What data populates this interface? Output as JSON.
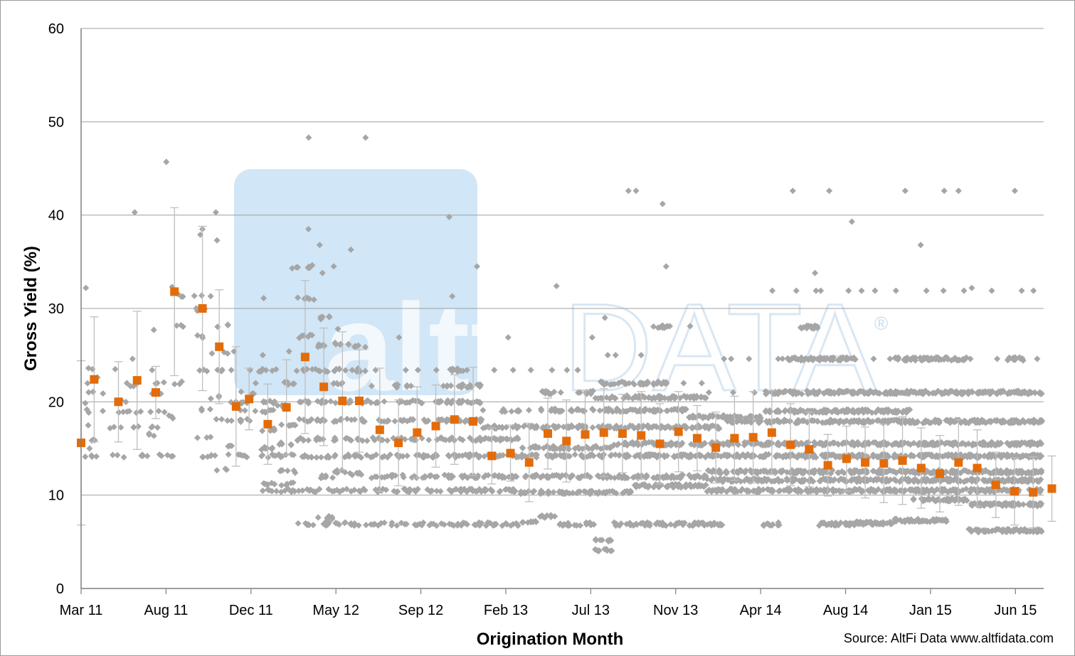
{
  "chart_data": {
    "type": "scatter",
    "title": "",
    "xlabel": "Origination Month",
    "ylabel": "Gross Yield (%)",
    "ylim": [
      0,
      60
    ],
    "yticks": [
      0,
      10,
      20,
      30,
      40,
      50,
      60
    ],
    "grid": "horizontal",
    "source": "Source: AltFi Data www.altfidata.com",
    "watermark": {
      "part_a": "altfi",
      "part_b": "DATA",
      "reg": "®"
    },
    "x_tick_labels": [
      "Mar 11",
      "Aug 11",
      "Dec 11",
      "May 12",
      "Sep 12",
      "Feb 13",
      "Jul 13",
      "Nov 13",
      "Apr 14",
      "Aug 14",
      "Jan 15",
      "Jun 15"
    ],
    "colors": {
      "points": "#a6a6a6",
      "mean": "#e36c0a",
      "error_bars": "#bfbfbf",
      "grid": "#a0a0a0",
      "watermark_box": "#c9e2f4"
    },
    "series": [
      {
        "name": "",
        "kind": "monthly-mean-with-error-bars",
        "months": [
          "Mar 11",
          "Apr 11",
          "May 11",
          "Jun 11",
          "Jul 11",
          "Aug 11",
          "Sep 11",
          "Oct 11",
          "Nov 11",
          "Dec 11",
          "Jan 12",
          "Feb 12",
          "Mar 12",
          "Apr 12",
          "May 12",
          "Jun 12",
          "Jul 12",
          "Aug 12",
          "Sep 12",
          "Oct 12",
          "Nov 12",
          "Dec 12",
          "Jan 13",
          "Feb 13",
          "Mar 13",
          "Apr 13",
          "May 13",
          "Jun 13",
          "Jul 13",
          "Aug 13",
          "Sep 13",
          "Oct 13",
          "Nov 13",
          "Dec 13",
          "Jan 14",
          "Feb 14",
          "Mar 14",
          "Apr 14",
          "May 14",
          "Jun 14",
          "Jul 14",
          "Aug 14",
          "Sep 14",
          "Oct 14",
          "Nov 14",
          "Dec 14",
          "Jan 15",
          "Feb 15",
          "Mar 15",
          "Apr 15",
          "May 15",
          "Jun 15",
          "Jul 15"
        ],
        "offsets": [
          0,
          0.7,
          2,
          3,
          4,
          5,
          6.5,
          7.4,
          8.3,
          9,
          10,
          11,
          12,
          13,
          14,
          14.9,
          16,
          17,
          18,
          19,
          20,
          21,
          22,
          23,
          24,
          25,
          26,
          27,
          28,
          29,
          30,
          31,
          32,
          33,
          34,
          35,
          36,
          37,
          38,
          39,
          40,
          41,
          42,
          43,
          44,
          45,
          46,
          47,
          48,
          49,
          50,
          51,
          52
        ],
        "means": [
          15.6,
          22.4,
          20.0,
          22.3,
          21.0,
          31.8,
          30.0,
          25.9,
          19.5,
          20.3,
          17.6,
          19.4,
          24.8,
          21.6,
          20.1,
          20.1,
          17.0,
          15.6,
          16.7,
          17.4,
          18.1,
          17.9,
          14.2,
          14.5,
          13.5,
          16.6,
          15.8,
          16.5,
          16.7,
          16.6,
          16.4,
          15.5,
          16.8,
          16.1,
          15.1,
          16.1,
          16.2,
          16.7,
          15.4,
          14.9,
          13.2,
          13.9,
          13.5,
          13.4,
          13.7,
          12.9,
          12.3,
          13.5,
          12.9,
          11.1,
          10.4,
          10.3,
          10.7
        ],
        "err": [
          8.8,
          6.7,
          4.3,
          7.4,
          2.8,
          9.0,
          8.8,
          6.1,
          6.4,
          3.3,
          4.3,
          5.1,
          8.2,
          6.3,
          7.4,
          5.5,
          6.6,
          4.6,
          4.9,
          4.4,
          4.8,
          5.8,
          3.0,
          3.0,
          4.2,
          3.8,
          4.4,
          4.7,
          4.7,
          4.2,
          4.7,
          4.3,
          4.3,
          3.5,
          3.8,
          4.5,
          4.9,
          4.5,
          4.4,
          4.0,
          3.3,
          3.5,
          3.8,
          4.2,
          4.7,
          4.3,
          4.1,
          4.6,
          4.1,
          3.5,
          3.6,
          3.8,
          3.5
        ]
      },
      {
        "name": "",
        "kind": "individual-loans",
        "note": "Dense clouds of grey points around each month; band values per month shown as characteristic yield levels.",
        "bands": [
          [
            14.2,
            15.0,
            17.5,
            20.0,
            22.0,
            23.5,
            29.5,
            32.2
          ],
          [
            14.2,
            16.0,
            19.0,
            21.0,
            22.6,
            23.5
          ],
          [
            14.2,
            17.3,
            19.0,
            20.0,
            22.0,
            23.5
          ],
          [
            14.2,
            17.3,
            19.0,
            21.7,
            24.6,
            40.3
          ],
          [
            14.2,
            16.5,
            17.3,
            19.0,
            21.0,
            22.0,
            23.4,
            27.7
          ],
          [
            14.2,
            18.4,
            22.0,
            28.1,
            31.4,
            32.3,
            45.7
          ],
          [
            14.2,
            16.2,
            19.2,
            23.4,
            27.0,
            29.9,
            31.3,
            37.9,
            38.5
          ],
          [
            12.7,
            14.2,
            18.0,
            20.5,
            23.4,
            25.2,
            28.1,
            37.3,
            40.3
          ],
          [
            14.2,
            15.3,
            18.0,
            19.9,
            23.4,
            25.4
          ],
          [
            14.2,
            18.0,
            19.0,
            20.0,
            21.0,
            22.0,
            23.4
          ],
          [
            10.5,
            11.2,
            14.2,
            15.0,
            17.0,
            19.0,
            20.0,
            23.4,
            25.0,
            31.1
          ],
          [
            10.5,
            11.2,
            12.5,
            14.2,
            15.5,
            17.5,
            19.5,
            22.0,
            25.4,
            34.3
          ],
          [
            6.9,
            10.5,
            14.2,
            16.0,
            18.0,
            20.0,
            23.4,
            27.0,
            31.0,
            34.5,
            38.5,
            48.3
          ],
          [
            6.9,
            7.6,
            10.5,
            12.0,
            14.2,
            16.0,
            18.0,
            20.0,
            23.4,
            26.0,
            29.0,
            33.8,
            36.8
          ],
          [
            6.9,
            10.5,
            12.5,
            14.2,
            16.0,
            18.0,
            20.0,
            22.0,
            23.4,
            26.3,
            27.8,
            34.5
          ],
          [
            6.9,
            10.5,
            12.3,
            14.2,
            16.0,
            18.0,
            20.0,
            23.4,
            26.0,
            36.3,
            48.3
          ],
          [
            6.9,
            10.5,
            12.0,
            14.2,
            16.0,
            18.0,
            20.0,
            21.7,
            23.4
          ],
          [
            6.9,
            10.5,
            12.0,
            14.2,
            16.0,
            18.0,
            20.0,
            21.7,
            23.4,
            26.9
          ],
          [
            6.9,
            10.5,
            12.0,
            14.2,
            16.0,
            18.0,
            20.0,
            21.7,
            23.4
          ],
          [
            6.9,
            10.5,
            12.0,
            14.2,
            16.0,
            18.0,
            20.0,
            21.7,
            23.4
          ],
          [
            6.9,
            10.5,
            12.0,
            14.2,
            16.0,
            18.0,
            20.0,
            21.7,
            23.4,
            31.3,
            39.8
          ],
          [
            6.9,
            10.5,
            12.0,
            14.2,
            16.0,
            18.0,
            20.0,
            21.7,
            23.4,
            34.5
          ],
          [
            6.9,
            10.5,
            12.0,
            14.2,
            16.0,
            17.3,
            19.1,
            23.4
          ],
          [
            6.9,
            10.5,
            12.0,
            14.2,
            16.0,
            17.3,
            19.1,
            23.4,
            26.9
          ],
          [
            7.2,
            10.3,
            12.0,
            14.2,
            15.1,
            17.3,
            19.1,
            23.4
          ],
          [
            7.7,
            10.3,
            12.0,
            14.2,
            15.1,
            17.3,
            19.1,
            21.0,
            23.4,
            32.4
          ],
          [
            6.9,
            10.3,
            12.0,
            14.2,
            15.1,
            17.3,
            19.1,
            21.0,
            23.4
          ],
          [
            6.9,
            10.3,
            12.0,
            14.2,
            15.1,
            17.3,
            19.1,
            21.0,
            23.4,
            26.9
          ],
          [
            4.1,
            5.2,
            10.3,
            12.0,
            14.2,
            15.1,
            17.3,
            19.1,
            20.5,
            22.0,
            25.0,
            29.0
          ],
          [
            6.9,
            10.3,
            12.0,
            14.2,
            15.5,
            17.3,
            19.1,
            20.5,
            22.0,
            25.0,
            42.6
          ],
          [
            6.9,
            11.0,
            12.0,
            14.2,
            15.5,
            17.3,
            19.1,
            20.5,
            22.0,
            25.0,
            42.6
          ],
          [
            6.9,
            11.0,
            12.0,
            14.2,
            15.5,
            17.3,
            19.1,
            20.5,
            22.0,
            28.1,
            34.5,
            41.2
          ],
          [
            6.9,
            11.0,
            12.0,
            14.2,
            15.5,
            17.3,
            19.1,
            20.5,
            22.0,
            28.1
          ],
          [
            6.9,
            11.0,
            12.0,
            14.2,
            15.5,
            17.3,
            18.4,
            20.5,
            22.0,
            28.1
          ],
          [
            6.9,
            10.5,
            11.6,
            12.5,
            14.2,
            15.5,
            17.3,
            18.4,
            21.0,
            24.6
          ],
          [
            10.5,
            11.6,
            12.5,
            14.2,
            15.5,
            17.9,
            18.4,
            21.0,
            24.6
          ],
          [
            10.5,
            11.6,
            12.5,
            14.2,
            15.5,
            17.9,
            18.4,
            21.0,
            24.6
          ],
          [
            6.9,
            10.5,
            11.6,
            12.5,
            14.2,
            15.5,
            17.9,
            19.0,
            21.0,
            24.6,
            31.9
          ],
          [
            10.5,
            11.6,
            12.5,
            14.2,
            15.5,
            17.9,
            19.0,
            21.0,
            24.6,
            31.9,
            42.6
          ],
          [
            10.5,
            11.6,
            12.5,
            14.2,
            15.5,
            17.9,
            19.0,
            21.0,
            24.6,
            28.0,
            31.9,
            33.8
          ],
          [
            6.9,
            10.5,
            11.6,
            12.5,
            14.2,
            15.5,
            17.9,
            19.0,
            21.0,
            24.6,
            31.9,
            42.6
          ],
          [
            6.9,
            10.5,
            11.6,
            12.5,
            14.2,
            15.5,
            17.9,
            19.0,
            21.0,
            24.6,
            31.9,
            39.3
          ],
          [
            7.0,
            10.5,
            11.6,
            12.5,
            14.2,
            15.5,
            17.9,
            19.0,
            21.0,
            24.6,
            31.9
          ],
          [
            7.0,
            10.5,
            11.6,
            12.5,
            14.2,
            15.5,
            17.9,
            19.0,
            21.0,
            24.6,
            31.9
          ],
          [
            7.3,
            10.5,
            11.6,
            12.5,
            14.2,
            15.5,
            17.9,
            19.0,
            21.0,
            24.6,
            31.9,
            42.6
          ],
          [
            7.3,
            9.5,
            10.5,
            11.6,
            12.5,
            14.2,
            15.5,
            17.9,
            21.0,
            24.6,
            31.9,
            36.8
          ],
          [
            7.3,
            9.5,
            10.5,
            11.6,
            12.5,
            14.2,
            15.5,
            17.9,
            21.0,
            24.6,
            31.9,
            42.6
          ],
          [
            9.5,
            10.5,
            11.6,
            12.5,
            14.2,
            15.5,
            17.9,
            21.0,
            24.6,
            31.9,
            42.6
          ],
          [
            6.2,
            9.0,
            10.5,
            11.6,
            12.5,
            14.2,
            15.5,
            17.9,
            21.0,
            24.6,
            32.2
          ],
          [
            6.2,
            9.0,
            10.5,
            11.6,
            12.5,
            14.2,
            15.5,
            17.9,
            21.0,
            24.6,
            31.9
          ],
          [
            6.2,
            9.0,
            10.5,
            11.6,
            12.5,
            14.2,
            15.5,
            17.9,
            21.0,
            24.6,
            31.9,
            42.6
          ],
          [
            6.2,
            9.0,
            10.5,
            11.6,
            12.5,
            14.2,
            15.5,
            17.9,
            21.0,
            24.6,
            31.9
          ],
          [
            6.2,
            9.0,
            10.5,
            11.6,
            12.5,
            14.2,
            15.5,
            17.9,
            21.0,
            24.6,
            31.9,
            42.6
          ]
        ]
      }
    ]
  }
}
